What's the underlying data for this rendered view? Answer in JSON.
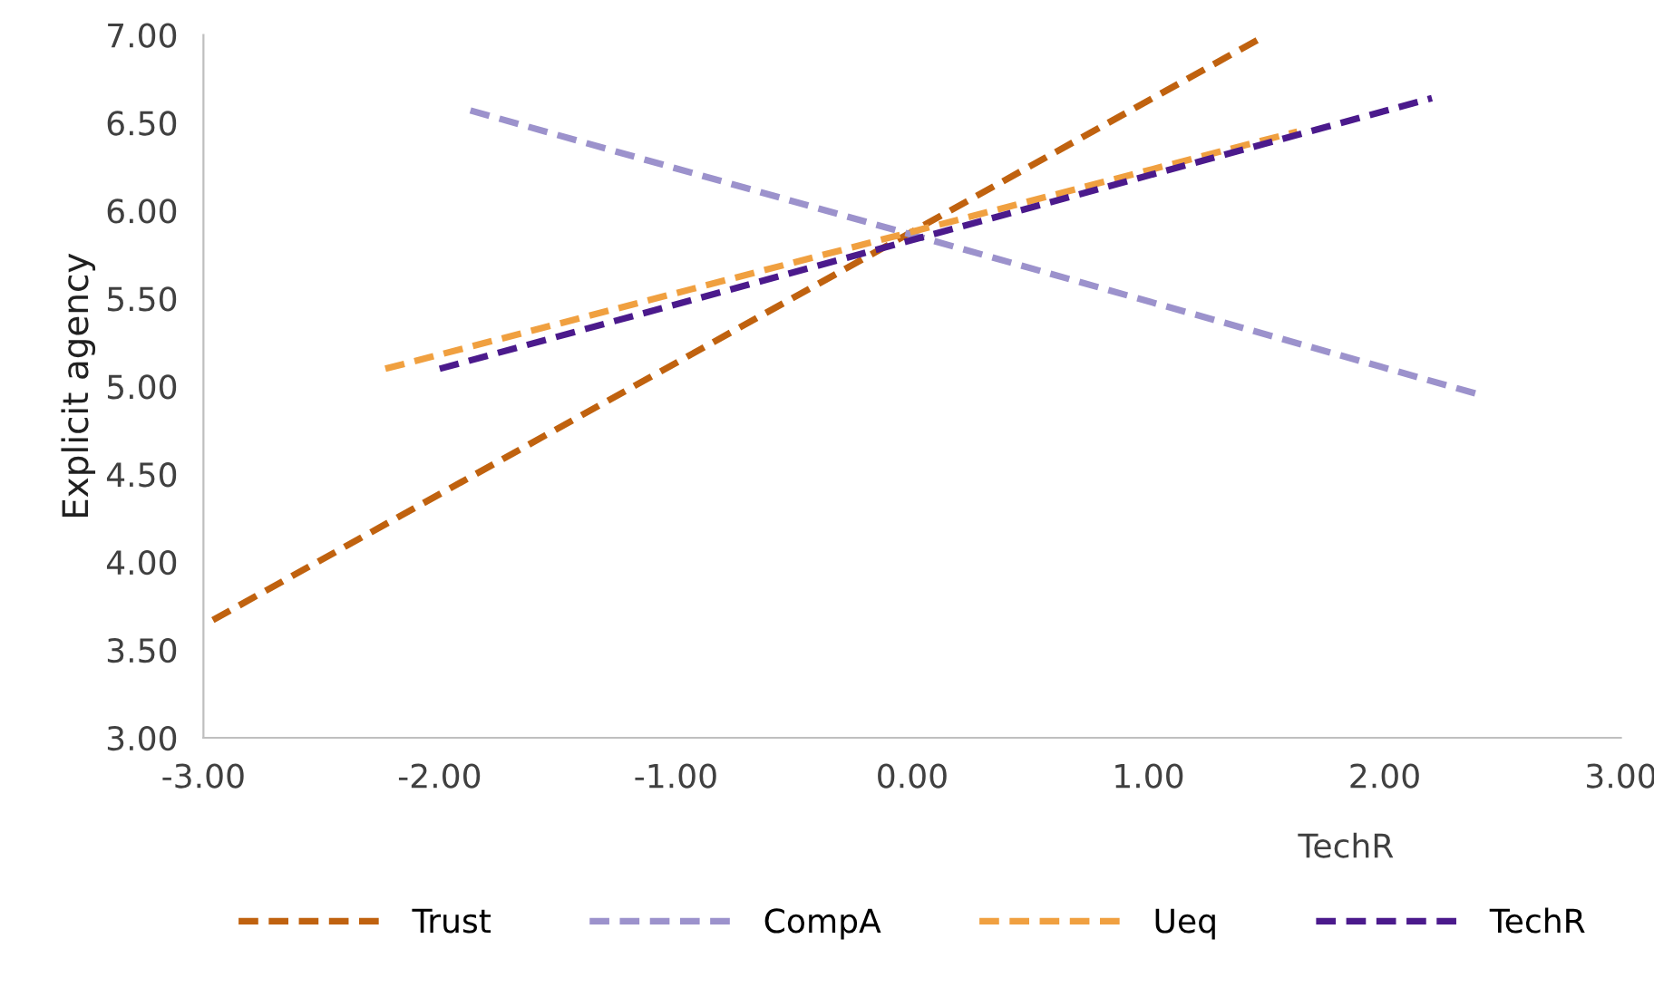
{
  "chart_data": {
    "type": "line",
    "xlabel": "TechR",
    "ylabel": "Explicit agency",
    "xlim": [
      -3,
      3
    ],
    "ylim": [
      3,
      7
    ],
    "xticks": [
      {
        "value": -3,
        "label": "-3.00"
      },
      {
        "value": -2,
        "label": "-2.00"
      },
      {
        "value": -1,
        "label": "-1.00"
      },
      {
        "value": 0,
        "label": "0.00"
      },
      {
        "value": 1,
        "label": "1.00"
      },
      {
        "value": 2,
        "label": "2.00"
      },
      {
        "value": 3,
        "label": "3.00"
      }
    ],
    "yticks": [
      {
        "value": 3,
        "label": "3.00"
      },
      {
        "value": 3.5,
        "label": "3.50"
      },
      {
        "value": 4,
        "label": "4.00"
      },
      {
        "value": 4.5,
        "label": "4.50"
      },
      {
        "value": 5,
        "label": "5.00"
      },
      {
        "value": 5.5,
        "label": "5.50"
      },
      {
        "value": 6,
        "label": "6.00"
      },
      {
        "value": 6.5,
        "label": "6.50"
      },
      {
        "value": 7,
        "label": "7.00"
      }
    ],
    "series": [
      {
        "name": "Trust",
        "color": "#c0620f",
        "x": [
          -2.96,
          1.46
        ],
        "values": [
          3.67,
          6.97
        ]
      },
      {
        "name": "CompA",
        "color": "#9c92cc",
        "x": [
          -1.87,
          2.41
        ],
        "values": [
          6.57,
          4.95
        ]
      },
      {
        "name": "Ueq",
        "color": "#f0a040",
        "x": [
          -2.23,
          1.63
        ],
        "values": [
          5.1,
          6.45
        ]
      },
      {
        "name": "TechR",
        "color": "#4b1a8c",
        "x": [
          -2.0,
          2.2
        ],
        "values": [
          5.1,
          6.64
        ]
      }
    ],
    "line_style": "dashed",
    "marker": "none",
    "grid": false,
    "legend": "bottom"
  }
}
